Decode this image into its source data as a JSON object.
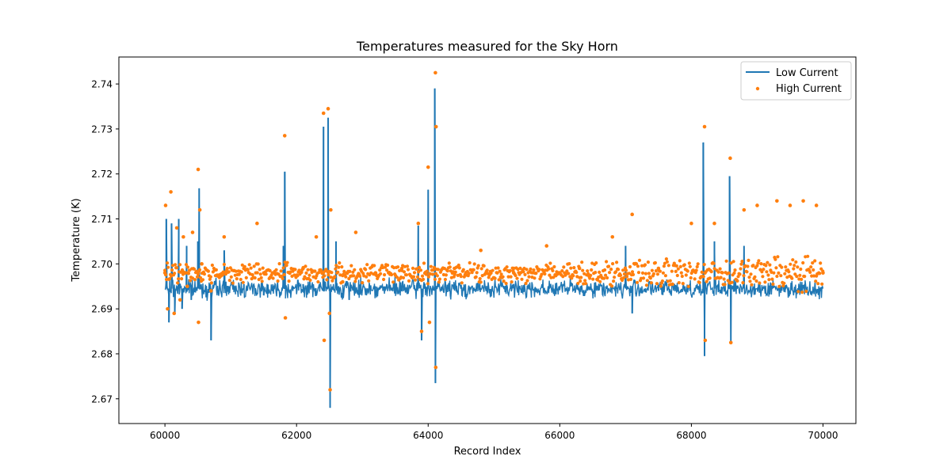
{
  "chart_data": {
    "type": "line",
    "title": "Temperatures measured for the Sky Horn",
    "xlabel": "Record Index",
    "ylabel": "Temperature (K)",
    "xlim": [
      59300,
      70500
    ],
    "ylim": [
      2.6645,
      2.746
    ],
    "x_ticks": [
      60000,
      62000,
      64000,
      66000,
      68000,
      70000
    ],
    "x_tick_labels": [
      "60000",
      "62000",
      "64000",
      "66000",
      "68000",
      "70000"
    ],
    "y_ticks": [
      2.67,
      2.68,
      2.69,
      2.7,
      2.71,
      2.72,
      2.73,
      2.74
    ],
    "y_tick_labels": [
      "2.67",
      "2.68",
      "2.69",
      "2.70",
      "2.71",
      "2.72",
      "2.73",
      "2.74"
    ],
    "grid": false,
    "legend_position": "top-right",
    "series": [
      {
        "name": "Low Current",
        "kind": "line",
        "color": "#1f77b4",
        "baseline": 2.6945,
        "noise": 0.0012,
        "x": [
          60000,
          60020,
          60060,
          60100,
          60150,
          60210,
          60260,
          60330,
          60400,
          60500,
          60520,
          60700,
          60900,
          61200,
          61500,
          61800,
          61820,
          62100,
          62400,
          62410,
          62480,
          62500,
          62510,
          62600,
          62800,
          63200,
          63600,
          63850,
          63900,
          64000,
          64100,
          64110,
          64300,
          64700,
          65200,
          65700,
          66200,
          66700,
          67000,
          67100,
          67500,
          67900,
          68180,
          68200,
          68350,
          68580,
          68600,
          68800,
          69100,
          69400,
          69700,
          70000
        ],
        "y": [
          2.6945,
          2.71,
          2.687,
          2.709,
          2.689,
          2.71,
          2.69,
          2.704,
          2.692,
          2.705,
          2.7168,
          2.683,
          2.703,
          2.6955,
          2.693,
          2.704,
          2.7205,
          2.6955,
          2.694,
          2.7305,
          2.7325,
          2.694,
          2.668,
          2.705,
          2.692,
          2.695,
          2.694,
          2.7085,
          2.683,
          2.7165,
          2.739,
          2.6735,
          2.695,
          2.694,
          2.695,
          2.6945,
          2.694,
          2.695,
          2.704,
          2.689,
          2.694,
          2.695,
          2.727,
          2.6795,
          2.705,
          2.7195,
          2.6825,
          2.704,
          2.695,
          2.6945,
          2.695,
          2.6945
        ]
      },
      {
        "name": "High Current",
        "kind": "scatter",
        "color": "#ff7f0e",
        "baseline": 2.698,
        "noise": 0.0014,
        "x": [
          60000,
          60010,
          60040,
          60090,
          60140,
          60180,
          60230,
          60280,
          60340,
          60420,
          60505,
          60510,
          60530,
          60560,
          60700,
          60900,
          61200,
          61400,
          61600,
          61820,
          61830,
          62100,
          62300,
          62410,
          62420,
          62480,
          62500,
          62510,
          62520,
          62700,
          62900,
          63200,
          63600,
          63850,
          63900,
          64000,
          64020,
          64110,
          64115,
          64120,
          64400,
          64800,
          65300,
          65800,
          66300,
          66800,
          67100,
          67500,
          68000,
          68200,
          68210,
          68350,
          68590,
          68600,
          68800,
          69000,
          69300,
          69500,
          69700,
          69900,
          70000
        ],
        "y": [
          2.698,
          2.713,
          2.69,
          2.716,
          2.689,
          2.708,
          2.692,
          2.706,
          2.695,
          2.707,
          2.721,
          2.687,
          2.712,
          2.7,
          2.694,
          2.706,
          2.699,
          2.709,
          2.697,
          2.7285,
          2.688,
          2.699,
          2.706,
          2.7335,
          2.683,
          2.7345,
          2.689,
          2.672,
          2.712,
          2.696,
          2.707,
          2.698,
          2.699,
          2.709,
          2.685,
          2.7215,
          2.687,
          2.7425,
          2.677,
          2.7305,
          2.699,
          2.703,
          2.698,
          2.704,
          2.699,
          2.706,
          2.711,
          2.699,
          2.709,
          2.7305,
          2.683,
          2.709,
          2.7235,
          2.6825,
          2.712,
          2.713,
          2.714,
          2.713,
          2.714,
          2.713,
          2.698
        ]
      }
    ]
  }
}
